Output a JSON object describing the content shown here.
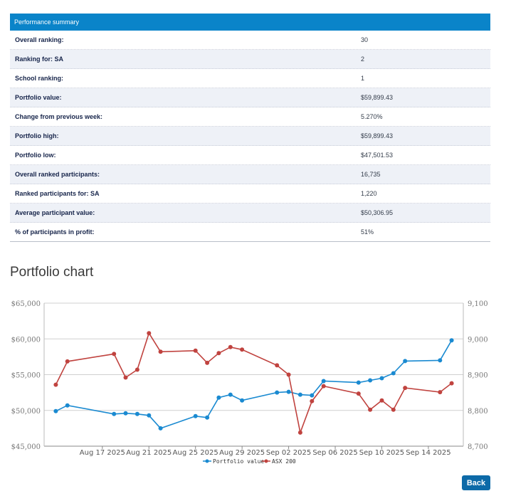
{
  "summary": {
    "header": "Performance summary",
    "rows": [
      {
        "label": "Overall ranking:",
        "value": "30"
      },
      {
        "label": "Ranking for:  SA",
        "value": "2"
      },
      {
        "label": "School ranking:",
        "value": "1"
      },
      {
        "label": "Portfolio value:",
        "value": "$59,899.43"
      },
      {
        "label": "Change from previous week:",
        "value": "5.270%"
      },
      {
        "label": "Portfolio high:",
        "value": "$59,899.43"
      },
      {
        "label": "Portfolio low:",
        "value": "$47,501.53"
      },
      {
        "label": "Overall ranked participants:",
        "value": "16,735"
      },
      {
        "label": "Ranked participants for:  SA",
        "value": "1,220"
      },
      {
        "label": "Average participant value:",
        "value": "$50,306.95"
      },
      {
        "label": "% of participants in profit:",
        "value": "51%"
      }
    ]
  },
  "chart_title": "Portfolio chart",
  "back_label": "Back",
  "chart_data": {
    "type": "line",
    "x_ticks": [
      "Aug 17 2025",
      "Aug 21 2025",
      "Aug 25 2025",
      "Aug 29 2025",
      "Sep 02 2025",
      "Sep 06 2025",
      "Sep 10 2025",
      "Sep 14 2025"
    ],
    "y_left": {
      "ticks": [
        "$45,000",
        "$50,000",
        "$55,000",
        "$60,000",
        "$65,000"
      ],
      "range": [
        45000,
        65000
      ]
    },
    "y_right": {
      "ticks": [
        "8,700",
        "8,800",
        "8,900",
        "9,000",
        "9,100"
      ],
      "range": [
        8700,
        9100
      ]
    },
    "grid": true,
    "legend_position": "bottom",
    "series": [
      {
        "name": "Portfolio value",
        "axis": "left",
        "color": "#1a8ad1",
        "points": [
          [
            "2025-08-13",
            49900
          ],
          [
            "2025-08-14",
            50700
          ],
          [
            "2025-08-18",
            49500
          ],
          [
            "2025-08-19",
            49600
          ],
          [
            "2025-08-20",
            49500
          ],
          [
            "2025-08-21",
            49300
          ],
          [
            "2025-08-22",
            47500
          ],
          [
            "2025-08-25",
            49200
          ],
          [
            "2025-08-26",
            49000
          ],
          [
            "2025-08-27",
            51800
          ],
          [
            "2025-08-28",
            52200
          ],
          [
            "2025-08-29",
            51400
          ],
          [
            "2025-09-01",
            52500
          ],
          [
            "2025-09-02",
            52600
          ],
          [
            "2025-09-03",
            52200
          ],
          [
            "2025-09-04",
            52100
          ],
          [
            "2025-09-05",
            54100
          ],
          [
            "2025-09-08",
            53900
          ],
          [
            "2025-09-09",
            54200
          ],
          [
            "2025-09-10",
            54500
          ],
          [
            "2025-09-11",
            55200
          ],
          [
            "2025-09-12",
            56900
          ],
          [
            "2025-09-15",
            57000
          ],
          [
            "2025-09-16",
            59800
          ]
        ]
      },
      {
        "name": "ASX 200",
        "axis": "right",
        "color": "#c0433f",
        "points": [
          [
            "2025-08-13",
            8872
          ],
          [
            "2025-08-14",
            8937
          ],
          [
            "2025-08-18",
            8958
          ],
          [
            "2025-08-19",
            8892
          ],
          [
            "2025-08-20",
            8914
          ],
          [
            "2025-08-21",
            9016
          ],
          [
            "2025-08-22",
            8964
          ],
          [
            "2025-08-25",
            8967
          ],
          [
            "2025-08-26",
            8933
          ],
          [
            "2025-08-27",
            8960
          ],
          [
            "2025-08-28",
            8977
          ],
          [
            "2025-08-29",
            8970
          ],
          [
            "2025-09-01",
            8926
          ],
          [
            "2025-09-02",
            8900
          ],
          [
            "2025-09-03",
            8738
          ],
          [
            "2025-09-04",
            8826
          ],
          [
            "2025-09-05",
            8868
          ],
          [
            "2025-09-08",
            8847
          ],
          [
            "2025-09-09",
            8802
          ],
          [
            "2025-09-10",
            8828
          ],
          [
            "2025-09-11",
            8802
          ],
          [
            "2025-09-12",
            8863
          ],
          [
            "2025-09-15",
            8851
          ],
          [
            "2025-09-16",
            8876
          ]
        ]
      }
    ]
  }
}
